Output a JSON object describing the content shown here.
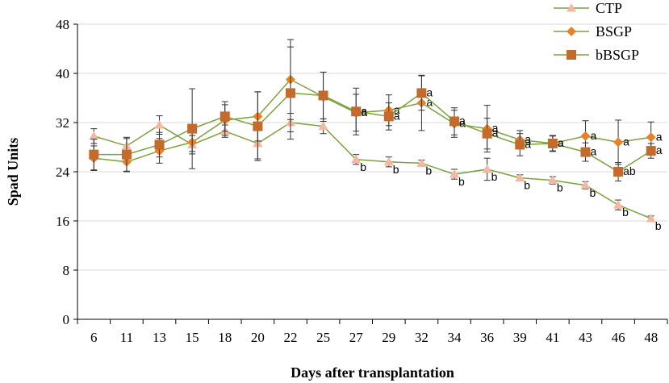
{
  "chart_data": {
    "type": "line",
    "title": "",
    "xlabel": "Days after transplantation",
    "ylabel": "Spad Units",
    "ylim": [
      0,
      48
    ],
    "yticks": [
      0,
      8,
      16,
      24,
      32,
      40,
      48
    ],
    "categories": [
      "6",
      "11",
      "13",
      "15",
      "18",
      "20",
      "22",
      "25",
      "27",
      "29",
      "32",
      "34",
      "36",
      "39",
      "41",
      "43",
      "46",
      "48"
    ],
    "legend_position": "top-right",
    "colors": {
      "line": "#7aa33a",
      "ctp_marker": "#f5b7a0",
      "bsgp_marker": "#e8822a",
      "bbsgp_marker": "#c46a2a",
      "error_bar": "#333333"
    },
    "series": [
      {
        "name": "CTP",
        "marker": "triangle",
        "values": [
          29.8,
          28.2,
          31.6,
          28.4,
          30.6,
          28.6,
          32.0,
          31.4,
          26.0,
          25.6,
          25.4,
          23.6,
          24.4,
          23.0,
          22.6,
          21.8,
          18.6,
          16.4
        ],
        "errors": [
          1.2,
          1.2,
          1.5,
          1.5,
          1.0,
          2.5,
          1.5,
          1.2,
          0.8,
          0.8,
          0.5,
          0.8,
          1.8,
          0.5,
          0.6,
          0.6,
          0.8,
          0.4
        ],
        "labels": [
          "",
          "",
          "",
          "",
          "",
          "",
          "",
          "",
          "b",
          "b",
          "b",
          "b",
          "b",
          "b",
          "b",
          "b",
          "b",
          "b"
        ]
      },
      {
        "name": "BSGP",
        "marker": "diamond",
        "values": [
          26.2,
          25.6,
          27.4,
          28.8,
          32.4,
          33.0,
          39.0,
          36.2,
          33.6,
          34.0,
          35.2,
          31.8,
          31.0,
          29.2,
          28.6,
          29.8,
          28.8,
          29.6
        ],
        "errors": [
          2.0,
          1.5,
          2.0,
          1.5,
          2.5,
          4.0,
          6.5,
          4.0,
          3.0,
          2.5,
          4.5,
          2.2,
          3.8,
          1.5,
          1.3,
          2.5,
          3.6,
          2.5
        ],
        "labels": [
          "",
          "",
          "",
          "",
          "",
          "",
          "",
          "",
          "a",
          "a",
          "a",
          "a",
          "a",
          "a",
          "a",
          "a",
          "a",
          "a"
        ]
      },
      {
        "name": "bBSGP",
        "marker": "square",
        "values": [
          26.8,
          26.8,
          28.4,
          31.0,
          33.0,
          31.4,
          36.8,
          36.4,
          33.8,
          33.0,
          36.8,
          32.2,
          30.2,
          28.4,
          28.6,
          27.2,
          24.0,
          27.4
        ],
        "errors": [
          2.5,
          2.8,
          2.0,
          6.5,
          2.4,
          5.6,
          7.5,
          3.8,
          3.8,
          2.2,
          2.8,
          2.2,
          2.5,
          1.8,
          1.2,
          1.5,
          1.5,
          1.2
        ],
        "labels": [
          "",
          "",
          "",
          "",
          "",
          "",
          "",
          "",
          "a",
          "a",
          "a",
          "a",
          "a",
          "a",
          "a",
          "a",
          "ab",
          "a"
        ]
      }
    ]
  }
}
